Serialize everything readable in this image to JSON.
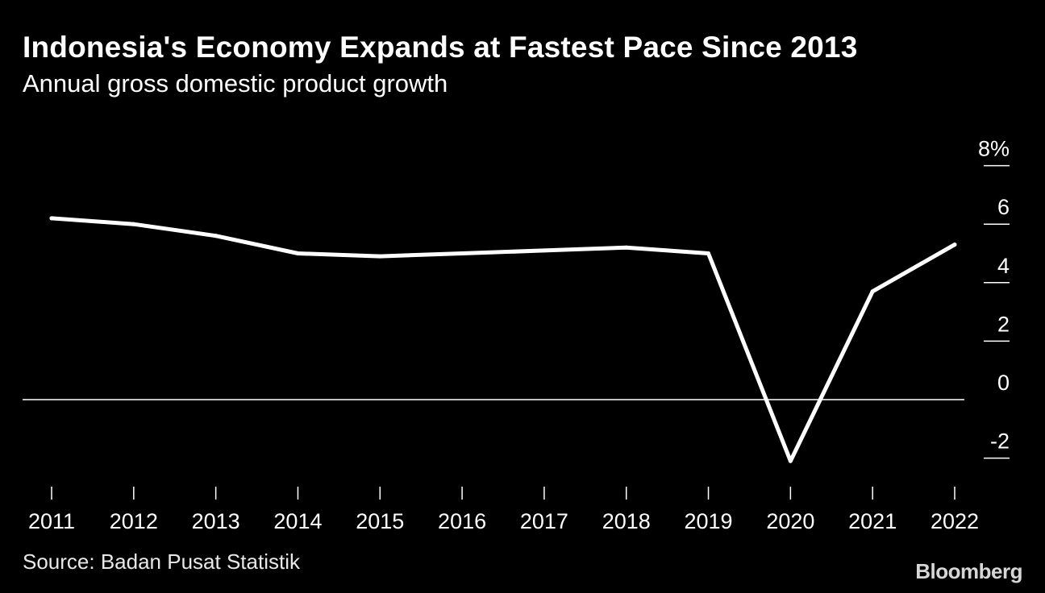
{
  "header": {
    "title": "Indonesia's Economy Expands at Fastest Pace Since 2013",
    "subtitle": "Annual gross domestic product growth"
  },
  "footer": {
    "source": "Source: Badan Pusat Statistik",
    "brand": "Bloomberg"
  },
  "colors": {
    "background": "#000000",
    "line": "#ffffff",
    "text": "#ffffff"
  },
  "chart_data": {
    "type": "line",
    "title": "Indonesia's Economy Expands at Fastest Pace Since 2013",
    "subtitle": "Annual gross domestic product growth",
    "x": [
      "2011",
      "2012",
      "2013",
      "2014",
      "2015",
      "2016",
      "2017",
      "2018",
      "2019",
      "2020",
      "2021",
      "2022"
    ],
    "series": [
      {
        "values": [
          6.2,
          6.0,
          5.6,
          5.0,
          4.9,
          5.0,
          5.1,
          5.2,
          5.0,
          -2.1,
          3.7,
          5.3
        ]
      }
    ],
    "y_ticks": [
      8,
      6,
      4,
      2,
      0,
      -2
    ],
    "y_tick_labels": [
      "8%",
      "6",
      "4",
      "2",
      "0",
      "-2"
    ],
    "ylim": [
      -3,
      8
    ],
    "zero_line": true,
    "y_axis_position": "right",
    "grid": false,
    "legend": "none"
  }
}
